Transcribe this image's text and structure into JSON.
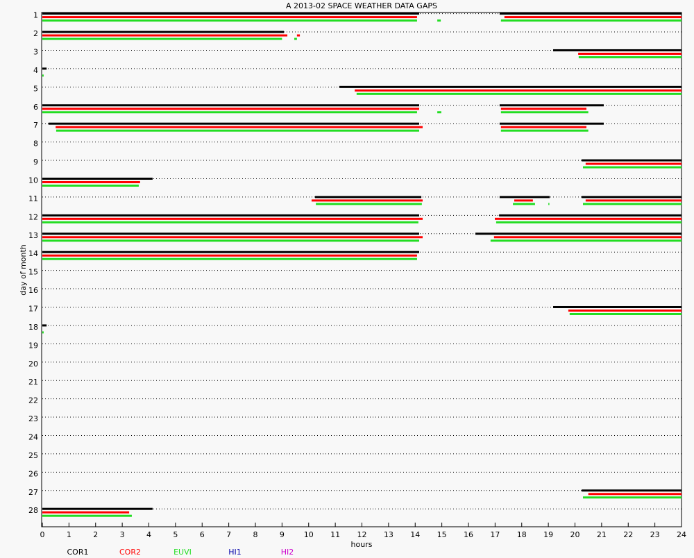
{
  "chart_data": {
    "type": "gap-timeline",
    "title": "A  2013-02 SPACE WEATHER DATA GAPS",
    "x_label": "hours",
    "y_label": "day of month",
    "xlim": [
      0,
      24
    ],
    "xticks": [
      0,
      1,
      2,
      3,
      4,
      5,
      6,
      7,
      8,
      9,
      10,
      11,
      12,
      13,
      14,
      15,
      16,
      17,
      18,
      19,
      20,
      21,
      22,
      23,
      24
    ],
    "categories": [
      1,
      2,
      3,
      4,
      5,
      6,
      7,
      8,
      9,
      10,
      11,
      12,
      13,
      14,
      15,
      16,
      17,
      18,
      19,
      20,
      21,
      22,
      23,
      24,
      25,
      26,
      27,
      28
    ],
    "grid": true,
    "series": [
      {
        "name": "COR1",
        "color": "#000000",
        "gaps": [
          {
            "day": 1,
            "start": 0,
            "end": 14.15
          },
          {
            "day": 1,
            "start": 17.17,
            "end": 24
          },
          {
            "day": 2,
            "start": 0,
            "end": 9.07
          },
          {
            "day": 3,
            "start": 19.18,
            "end": 24
          },
          {
            "day": 4,
            "start": 0,
            "end": 0.16
          },
          {
            "day": 5,
            "start": 11.15,
            "end": 24
          },
          {
            "day": 6,
            "start": 0,
            "end": 14.15
          },
          {
            "day": 6,
            "start": 17.17,
            "end": 21.08
          },
          {
            "day": 7,
            "start": 0.23,
            "end": 14.15
          },
          {
            "day": 7,
            "start": 17.17,
            "end": 21.08
          },
          {
            "day": 9,
            "start": 20.25,
            "end": 24
          },
          {
            "day": 10,
            "start": 0,
            "end": 4.14
          },
          {
            "day": 11,
            "start": 10.24,
            "end": 14.23
          },
          {
            "day": 11,
            "start": 17.17,
            "end": 19.05
          },
          {
            "day": 11,
            "start": 20.25,
            "end": 24
          },
          {
            "day": 12,
            "start": 0,
            "end": 14.15
          },
          {
            "day": 12,
            "start": 17.15,
            "end": 24
          },
          {
            "day": 13,
            "start": 0,
            "end": 14.15
          },
          {
            "day": 13,
            "start": 16.26,
            "end": 24
          },
          {
            "day": 14,
            "start": 0,
            "end": 14.15
          },
          {
            "day": 17,
            "start": 19.18,
            "end": 24
          },
          {
            "day": 18,
            "start": 0,
            "end": 0.16
          },
          {
            "day": 27,
            "start": 20.25,
            "end": 24
          },
          {
            "day": 28,
            "start": 0,
            "end": 4.14
          }
        ]
      },
      {
        "name": "COR2",
        "color": "#ff0000",
        "gaps": [
          {
            "day": 1,
            "start": 0,
            "end": 14.07
          },
          {
            "day": 1,
            "start": 17.35,
            "end": 24
          },
          {
            "day": 2,
            "start": 0,
            "end": 9.2
          },
          {
            "day": 2,
            "start": 9.56,
            "end": 9.67
          },
          {
            "day": 3,
            "start": 20.12,
            "end": 24
          },
          {
            "day": 5,
            "start": 11.73,
            "end": 24
          },
          {
            "day": 6,
            "start": 0,
            "end": 14.15
          },
          {
            "day": 6,
            "start": 17.22,
            "end": 20.43
          },
          {
            "day": 7,
            "start": 0.5,
            "end": 14.28
          },
          {
            "day": 7,
            "start": 17.22,
            "end": 20.43
          },
          {
            "day": 9,
            "start": 20.4,
            "end": 24
          },
          {
            "day": 10,
            "start": 0,
            "end": 3.67
          },
          {
            "day": 11,
            "start": 10.11,
            "end": 14.28
          },
          {
            "day": 11,
            "start": 17.72,
            "end": 18.42
          },
          {
            "day": 11,
            "start": 20.4,
            "end": 24
          },
          {
            "day": 12,
            "start": 0,
            "end": 14.28
          },
          {
            "day": 12,
            "start": 16.99,
            "end": 24
          },
          {
            "day": 13,
            "start": 0,
            "end": 14.28
          },
          {
            "day": 13,
            "start": 16.96,
            "end": 24
          },
          {
            "day": 14,
            "start": 0,
            "end": 14.07
          },
          {
            "day": 17,
            "start": 19.75,
            "end": 24
          },
          {
            "day": 27,
            "start": 20.5,
            "end": 24
          },
          {
            "day": 28,
            "start": 0,
            "end": 3.26
          }
        ]
      },
      {
        "name": "EUVI",
        "color": "#22dd22",
        "gaps": [
          {
            "day": 1,
            "start": 0,
            "end": 14.07
          },
          {
            "day": 1,
            "start": 14.83,
            "end": 14.96
          },
          {
            "day": 1,
            "start": 17.22,
            "end": 24
          },
          {
            "day": 2,
            "start": 0,
            "end": 9.0
          },
          {
            "day": 2,
            "start": 9.46,
            "end": 9.56
          },
          {
            "day": 3,
            "start": 20.14,
            "end": 24
          },
          {
            "day": 4,
            "start": 0,
            "end": 0.05
          },
          {
            "day": 5,
            "start": 11.8,
            "end": 24
          },
          {
            "day": 6,
            "start": 0,
            "end": 14.07
          },
          {
            "day": 6,
            "start": 14.83,
            "end": 14.98
          },
          {
            "day": 6,
            "start": 17.22,
            "end": 20.5
          },
          {
            "day": 7,
            "start": 0.52,
            "end": 14.15
          },
          {
            "day": 7,
            "start": 17.22,
            "end": 20.5
          },
          {
            "day": 9,
            "start": 20.3,
            "end": 24
          },
          {
            "day": 10,
            "start": 0,
            "end": 3.62
          },
          {
            "day": 11,
            "start": 10.27,
            "end": 14.25
          },
          {
            "day": 11,
            "start": 17.67,
            "end": 18.5
          },
          {
            "day": 11,
            "start": 19.0,
            "end": 19.03
          },
          {
            "day": 11,
            "start": 20.3,
            "end": 24
          },
          {
            "day": 12,
            "start": 0,
            "end": 14.12
          },
          {
            "day": 12,
            "start": 17.04,
            "end": 24
          },
          {
            "day": 13,
            "start": 0,
            "end": 14.15
          },
          {
            "day": 13,
            "start": 16.83,
            "end": 24
          },
          {
            "day": 14,
            "start": 0,
            "end": 14.07
          },
          {
            "day": 17,
            "start": 19.8,
            "end": 24
          },
          {
            "day": 18,
            "start": 0,
            "end": 0.05
          },
          {
            "day": 27,
            "start": 20.3,
            "end": 24
          },
          {
            "day": 28,
            "start": 0,
            "end": 3.36
          }
        ]
      },
      {
        "name": "HI1",
        "color": "#0000aa",
        "gaps": []
      },
      {
        "name": "HI2",
        "color": "#cc00cc",
        "gaps": []
      }
    ]
  }
}
